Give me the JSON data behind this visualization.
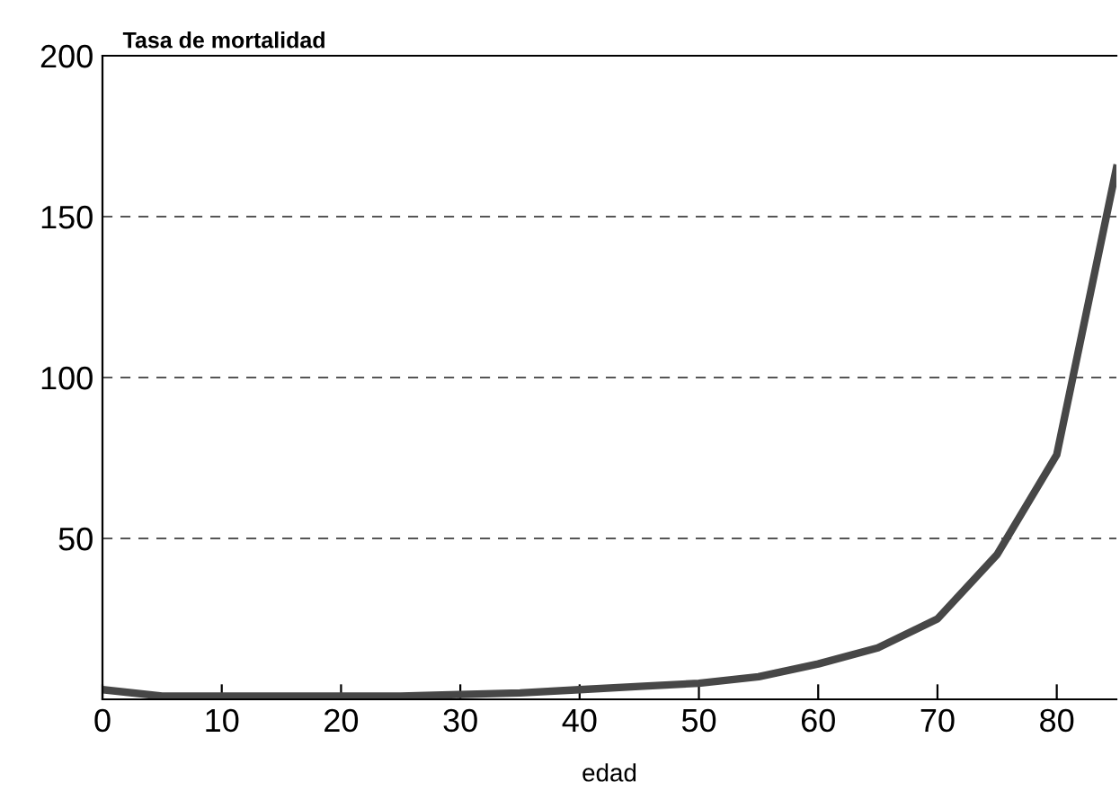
{
  "chart_data": {
    "type": "line",
    "ylabel": "Tasa de mortalidad",
    "xlabel": "edad",
    "x": [
      0,
      5,
      10,
      15,
      20,
      25,
      30,
      35,
      40,
      45,
      50,
      55,
      60,
      65,
      70,
      75,
      80,
      85
    ],
    "series": [
      {
        "color": "#474747",
        "values": [
          3,
          1,
          1,
          1,
          1,
          1,
          1.5,
          2,
          3,
          4,
          5,
          7,
          11,
          16,
          25,
          45,
          76,
          165
        ]
      }
    ],
    "xlim": [
      0,
      85
    ],
    "ylim": [
      0,
      200
    ],
    "xticks": [
      0,
      10,
      20,
      30,
      40,
      50,
      60,
      70,
      80
    ],
    "yticks": [
      50,
      100,
      150,
      200
    ],
    "grid": "y",
    "marker": "none",
    "line_style": "solid"
  }
}
